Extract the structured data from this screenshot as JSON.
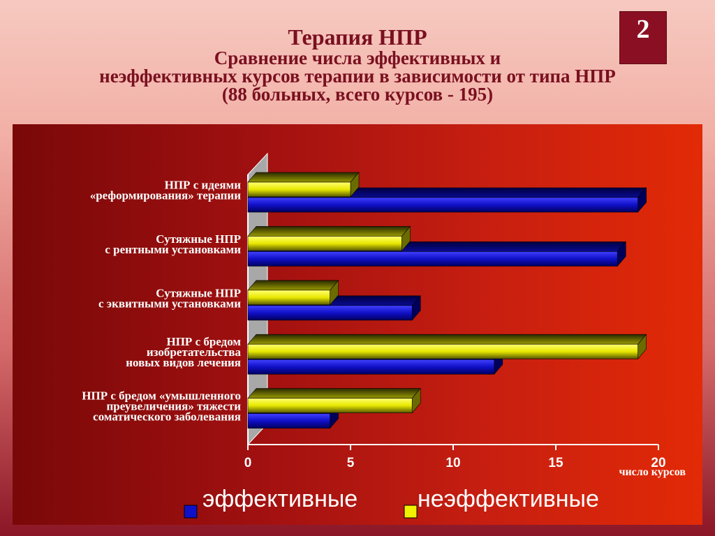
{
  "slide": {
    "title": "Терапия НПР",
    "subtitle_lines": [
      "Сравнение числа эффективных и",
      "неэффективных курсов терапии в зависимости от типа НПР",
      "(88 больных, всего курсов - 195)"
    ],
    "page_number": "2"
  },
  "chart_data": {
    "type": "bar",
    "orientation": "horizontal",
    "categories": [
      [
        "НПР с идеями",
        "«реформирования» терапии"
      ],
      [
        "Сутяжные НПР",
        "с рентными установками"
      ],
      [
        "Сутяжные НПР",
        "с эквитными установками"
      ],
      [
        "НПР с бредом",
        "изобретательства",
        "новых видов лечения"
      ],
      [
        "НПР с бредом «умышленного",
        "преувеличения» тяжести",
        "соматического заболевания"
      ]
    ],
    "series": [
      {
        "name": "эффективные",
        "values": [
          19,
          18,
          8,
          12,
          4
        ]
      },
      {
        "name": "неэффективные",
        "values": [
          5,
          7.5,
          4,
          19,
          8
        ]
      }
    ],
    "xlim": [
      0,
      20
    ],
    "xticks": [
      "0",
      "5",
      "10",
      "15",
      "20"
    ],
    "xlabel": "число курсов",
    "ylabel": "",
    "grid": false,
    "legend": "bottom"
  },
  "colors": {
    "effective": "#1010c8",
    "ineffective": "#f0f000",
    "axis": "#ffffff"
  }
}
